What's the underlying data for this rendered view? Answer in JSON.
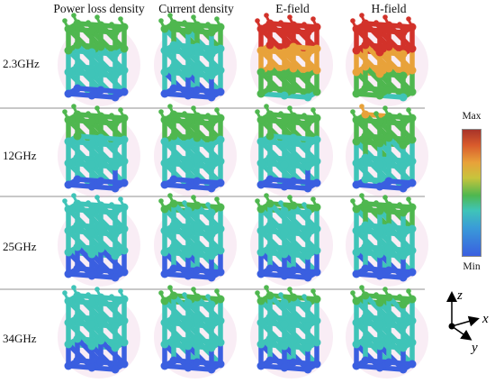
{
  "columns": [
    "Power loss density",
    "Current density",
    "E-field",
    "H-field"
  ],
  "rows": [
    "2.3GHz",
    "12GHz",
    "25GHz",
    "34GHz"
  ],
  "colorbar": {
    "max_label": "Max",
    "min_label": "Min"
  },
  "axes": {
    "z": "z",
    "x": "x",
    "y": "y"
  },
  "colors": {
    "min": "#3a5fe0",
    "low": "#3fc4b8",
    "mid": "#4fb74f",
    "high": "#e8a23a",
    "max": "#d2322a",
    "shadow": "#e8b8d8"
  },
  "field_levels": [
    [
      0.55,
      0.45,
      0.85,
      0.95
    ],
    [
      0.5,
      0.52,
      0.5,
      0.62
    ],
    [
      0.35,
      0.4,
      0.4,
      0.45
    ],
    [
      0.35,
      0.4,
      0.4,
      0.42
    ]
  ]
}
